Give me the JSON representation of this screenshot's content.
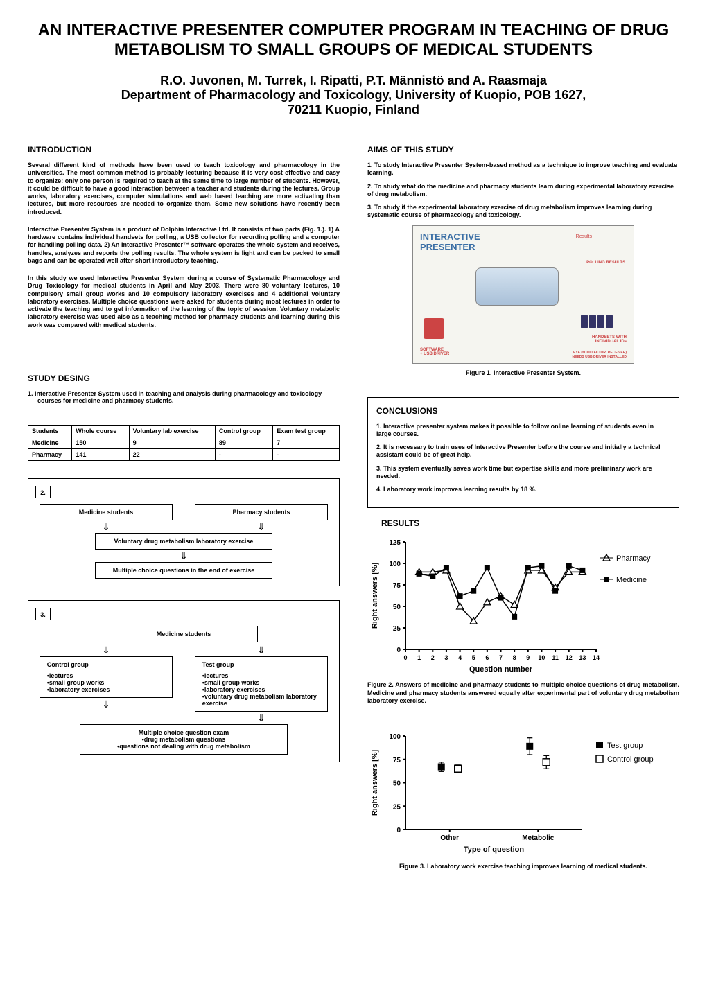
{
  "title": "AN INTERACTIVE PRESENTER COMPUTER PROGRAM IN TEACHING OF DRUG METABOLISM TO SMALL GROUPS OF MEDICAL STUDENTS",
  "authors_line1": "R.O. Juvonen, M. Turrek, I. Ripatti, P.T. Männistö and A. Raasmaja",
  "authors_line2": "Department of Pharmacology and Toxicology, University of Kuopio, POB 1627,",
  "authors_line3": "70211 Kuopio, Finland",
  "intro": {
    "heading": "INTRODUCTION",
    "p1": "Several different kind of methods have been used to teach toxicology and pharmacology in the universities. The most common method is probably lecturing because it is very cost effective and easy to organize: only one person is required to teach at the same time to large number of students. However, it could be difficult to have a good interaction between a teacher and students during the lectures. Group works, laboratory exercises, computer simulations and web based teaching are more activating than lectures, but more resources are needed to organize them. Some new solutions have recently been introduced.",
    "p2": "Interactive Presenter System is a product of Dolphin Interactive Ltd. It consists of two parts (Fig. 1.). 1) A hardware contains individual handsets for polling, a USB collector for recording polling and a computer for handling polling data. 2)  An Interactive Presenter™ software operates the whole system and receives, handles, analyzes and reports the polling results. The whole system is light and can be packed to small bags and can be operated well after short introductory teaching.",
    "p3": "In this study we used Interactive Presenter System during a course of Systematic Pharmacology and Drug Toxicology for medical students in April and May 2003. There were 80 voluntary lectures, 10 compulsory small group works and 10 compulsory laboratory exercises and 4 additional voluntary laboratory exercises. Multiple choice questions were asked for students during most lectures in order to activate the teaching and to get information of the learning of the topic of session. Voluntary metabolic laboratory exercise was used also as a teaching method for pharmacy students and learning during this work was compared with medical students."
  },
  "aims": {
    "heading": "AIMS OF THIS STUDY",
    "items": [
      "1. To study Interactive Presenter System-based method as a technique to improve teaching and evaluate learning.",
      "2. To study what do the medicine and pharmacy students learn during experimental laboratory exercise of drug metabolism.",
      "3. To study if the experimental laboratory exercise of drug metabolism improves learning during systematic course of pharmacology and toxicology."
    ]
  },
  "fig1": {
    "caption": "Figure 1. Interactive Presenter System.",
    "overlay_title1": "INTERACTIVE",
    "overlay_title2": "PRESENTER",
    "label_results": "Results",
    "label_polling": "POLLING RESULTS",
    "label_software": "SOFTWARE",
    "label_usb": "+ USB DRIVER",
    "label_handsets1": "HANDSETS WITH",
    "label_handsets2": "INDIVIDUAL IDs",
    "label_eye": "EYE (=COLLECTOR, RECEIVER)",
    "label_needs": "NEEDS USB DRIVER INSTALLED"
  },
  "study": {
    "heading": "STUDY DESING",
    "item1": "1.  Interactive Presenter System used in teaching and analysis during pharmacology and toxicology courses for medicine and pharmacy students."
  },
  "table": {
    "columns": [
      "Students",
      "Whole course",
      "Voluntary lab exercise",
      "Control group",
      "Exam test group"
    ],
    "rows": [
      [
        "Medicine",
        "150",
        "9",
        "89",
        "7"
      ],
      [
        "Pharmacy",
        "141",
        "22",
        "-",
        "-"
      ]
    ]
  },
  "conclusions": {
    "heading": "CONCLUSIONS",
    "items": [
      "1. Interactive presenter system makes it possible to follow online learning of students even in large courses.",
      "2. It is necessary to train uses of Interactive Presenter before the course and initially a technical assistant could be of great help.",
      "3. This system eventually saves work time but expertise skills and more preliminary work are needed.",
      "4. Laboratory work improves learning results by 18 %."
    ]
  },
  "results_heading": "RESULTS",
  "diagram2": {
    "num": "2.",
    "medicine": "Medicine students",
    "pharmacy": "Pharmacy students",
    "voluntary": "Voluntary drug metabolism laboratory exercise",
    "mcq": "Multiple choice questions in the end of exercise"
  },
  "chart2": {
    "type": "line-scatter",
    "ylabel": "Right answers [%]",
    "xlabel": "Question number",
    "xlim": [
      0,
      14
    ],
    "ylim": [
      0,
      125
    ],
    "xticks": [
      0,
      1,
      2,
      3,
      4,
      5,
      6,
      7,
      8,
      9,
      10,
      11,
      12,
      13,
      14
    ],
    "yticks": [
      0,
      25,
      50,
      75,
      100,
      125
    ],
    "series": [
      {
        "name": "Pharmacy",
        "marker": "triangle-open",
        "color": "#000000",
        "line": true,
        "data": [
          [
            1,
            90
          ],
          [
            2,
            90
          ],
          [
            3,
            92
          ],
          [
            4,
            50
          ],
          [
            5,
            33
          ],
          [
            6,
            55
          ],
          [
            7,
            62
          ],
          [
            8,
            52
          ],
          [
            9,
            92
          ],
          [
            10,
            92
          ],
          [
            11,
            72
          ],
          [
            12,
            90
          ],
          [
            13,
            90
          ]
        ]
      },
      {
        "name": "Medicine",
        "marker": "square-filled",
        "color": "#000000",
        "line": true,
        "data": [
          [
            1,
            88
          ],
          [
            2,
            85
          ],
          [
            3,
            95
          ],
          [
            4,
            62
          ],
          [
            5,
            68
          ],
          [
            6,
            95
          ],
          [
            7,
            60
          ],
          [
            8,
            38
          ],
          [
            9,
            95
          ],
          [
            10,
            97
          ],
          [
            11,
            68
          ],
          [
            12,
            97
          ],
          [
            13,
            92
          ]
        ]
      }
    ],
    "legend": [
      "Pharmacy",
      "Medicine"
    ],
    "caption": "Figure 2. Answers of medicine and pharmacy students to multiple choice questions of drug metabolism. Medicine and pharmacy students answered equally after experimental part of voluntary drug metabolism laboratory exercise."
  },
  "diagram3": {
    "num": "3.",
    "medicine": "Medicine students",
    "control_title": "Control group",
    "control_items": [
      "•lectures",
      "•small group works",
      "•laboratory exercises"
    ],
    "test_title": "Test group",
    "test_items": [
      "•lectures",
      "•small group works",
      "•laboratory exercises",
      "•voluntary drug metabolism laboratory exercise"
    ],
    "exam_title": "Multiple choice question exam",
    "exam_items": [
      "•drug metabolism questions",
      "•questions not dealing with drug metabolism"
    ]
  },
  "chart3": {
    "type": "scatter",
    "ylabel": "Right answers [%]",
    "xlabel": "Type of question",
    "ylim": [
      0,
      100
    ],
    "yticks": [
      0,
      25,
      50,
      75,
      100
    ],
    "categories": [
      "Other",
      "Metabolic"
    ],
    "series": [
      {
        "name": "Test group",
        "marker": "square-filled",
        "color": "#000000",
        "data": [
          [
            "Other",
            67,
            5
          ],
          [
            "Metabolic",
            89,
            9
          ]
        ]
      },
      {
        "name": "Control group",
        "marker": "square-open",
        "color": "#000000",
        "data": [
          [
            "Other",
            65,
            4
          ],
          [
            "Metabolic",
            72,
            7
          ]
        ]
      }
    ],
    "legend": [
      "Test group",
      "Control group"
    ],
    "caption": "Figure 3. Laboratory work exercise teaching improves learning of medical students."
  },
  "colors": {
    "text": "#000000",
    "bg": "#ffffff",
    "border": "#000000"
  }
}
